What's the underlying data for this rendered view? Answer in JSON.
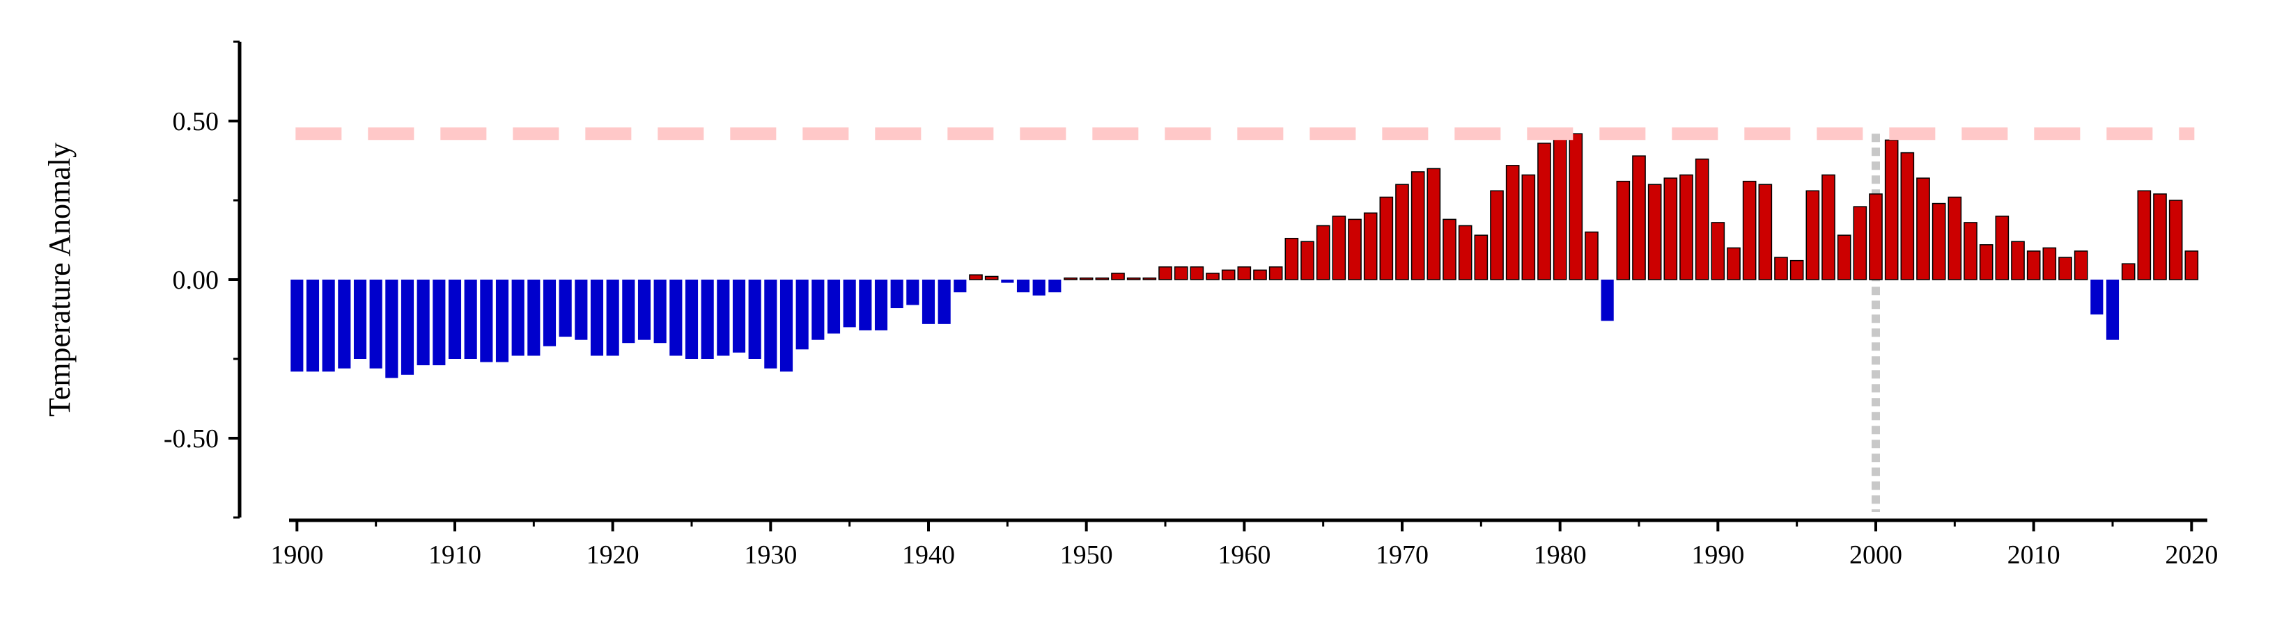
{
  "chart_data": {
    "type": "bar",
    "ylabel": "Temperature Anomaly",
    "x": [
      1900,
      1901,
      1902,
      1903,
      1904,
      1905,
      1906,
      1907,
      1908,
      1909,
      1910,
      1911,
      1912,
      1913,
      1914,
      1915,
      1916,
      1917,
      1918,
      1919,
      1920,
      1921,
      1922,
      1923,
      1924,
      1925,
      1926,
      1927,
      1928,
      1929,
      1930,
      1931,
      1932,
      1933,
      1934,
      1935,
      1936,
      1937,
      1938,
      1939,
      1940,
      1941,
      1942,
      1943,
      1944,
      1945,
      1946,
      1947,
      1948,
      1949,
      1950,
      1951,
      1952,
      1953,
      1954,
      1955,
      1956,
      1957,
      1958,
      1959,
      1960,
      1961,
      1962,
      1963,
      1964,
      1965,
      1966,
      1967,
      1968,
      1969,
      1970,
      1971,
      1972,
      1973,
      1974,
      1975,
      1976,
      1977,
      1978,
      1979,
      1980,
      1981,
      1982,
      1983,
      1984,
      1985,
      1986,
      1987,
      1988,
      1989,
      1990,
      1991,
      1992,
      1993,
      1994,
      1995,
      1996,
      1997,
      1998,
      1999,
      2000,
      2001,
      2002,
      2003,
      2004,
      2005,
      2006,
      2007,
      2008,
      2009,
      2010,
      2011,
      2012,
      2013,
      2014,
      2015,
      2016,
      2017,
      2018,
      2019,
      2020
    ],
    "values": [
      -0.29,
      -0.29,
      -0.29,
      -0.28,
      -0.25,
      -0.28,
      -0.31,
      -0.3,
      -0.27,
      -0.27,
      -0.25,
      -0.25,
      -0.26,
      -0.26,
      -0.24,
      -0.24,
      -0.21,
      -0.18,
      -0.19,
      -0.24,
      -0.24,
      -0.2,
      -0.19,
      -0.2,
      -0.24,
      -0.25,
      -0.25,
      -0.24,
      -0.23,
      -0.25,
      -0.28,
      -0.29,
      -0.22,
      -0.19,
      -0.17,
      -0.15,
      -0.16,
      -0.16,
      -0.09,
      -0.08,
      -0.14,
      -0.14,
      -0.04,
      0.015,
      0.01,
      -0.01,
      -0.04,
      -0.05,
      -0.04,
      0.005,
      0.005,
      0.005,
      0.02,
      0.005,
      0.005,
      0.04,
      0.04,
      0.04,
      0.02,
      0.03,
      0.04,
      0.03,
      0.04,
      0.13,
      0.12,
      0.17,
      0.2,
      0.19,
      0.21,
      0.26,
      0.3,
      0.34,
      0.35,
      0.19,
      0.17,
      0.14,
      0.28,
      0.36,
      0.33,
      0.43,
      0.46,
      0.46,
      0.15,
      -0.13,
      0.31,
      0.39,
      0.3,
      0.32,
      0.33,
      0.38,
      0.18,
      0.1,
      0.31,
      0.3,
      0.07,
      0.06,
      0.28,
      0.33,
      0.14,
      0.23,
      0.27,
      0.44,
      0.4,
      0.32,
      0.24,
      0.26,
      0.18,
      0.11,
      0.2,
      0.12,
      0.09,
      0.1,
      0.07,
      0.09,
      -0.11,
      -0.19,
      0.05,
      0.28,
      0.27,
      0.25,
      0.09
    ],
    "positive_color": "#cc0000",
    "negative_color": "#0000cc",
    "xlim": [
      1899.5,
      2021
    ],
    "xticks": [
      1900,
      1910,
      1920,
      1930,
      1940,
      1950,
      1960,
      1970,
      1980,
      1990,
      2000,
      2010,
      2020
    ],
    "xminorticks": [
      1905,
      1915,
      1925,
      1935,
      1945,
      1955,
      1965,
      1975,
      1985,
      1995,
      2005,
      2015
    ],
    "ylim": [
      -0.75,
      0.75
    ],
    "yticks": [
      {
        "value": -0.5,
        "label": "-0.50"
      },
      {
        "value": 0,
        "label": "0.00"
      },
      {
        "value": 0.5,
        "label": "0.50"
      }
    ],
    "yminorticks": [
      -0.75,
      -0.25,
      0.25,
      0.75
    ],
    "hline": {
      "value": 0.46,
      "color": "#ffc8c8"
    },
    "vline": {
      "value": 2000,
      "color": "#c8c8c8"
    }
  }
}
